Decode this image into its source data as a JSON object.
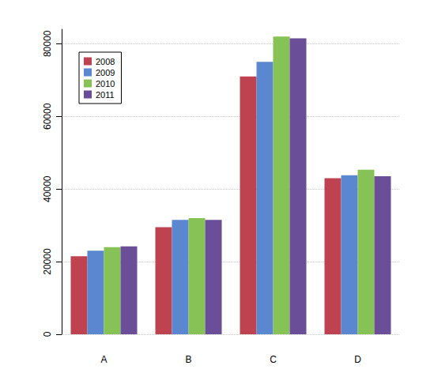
{
  "chart_data": {
    "type": "bar",
    "categories": [
      "A",
      "B",
      "C",
      "D"
    ],
    "series": [
      {
        "name": "2008",
        "color": "#be4250",
        "values": [
          21500,
          29500,
          71000,
          43000
        ]
      },
      {
        "name": "2009",
        "color": "#5b87d0",
        "values": [
          23000,
          31500,
          75000,
          43800
        ]
      },
      {
        "name": "2010",
        "color": "#86c256",
        "values": [
          24000,
          32000,
          82000,
          45300
        ]
      },
      {
        "name": "2011",
        "color": "#6a4e98",
        "values": [
          24200,
          31500,
          81500,
          43500
        ]
      }
    ],
    "ylim": [
      0,
      84000
    ],
    "yticks": [
      0,
      20000,
      40000,
      60000,
      80000
    ],
    "grid": true,
    "legend": "top-left"
  }
}
